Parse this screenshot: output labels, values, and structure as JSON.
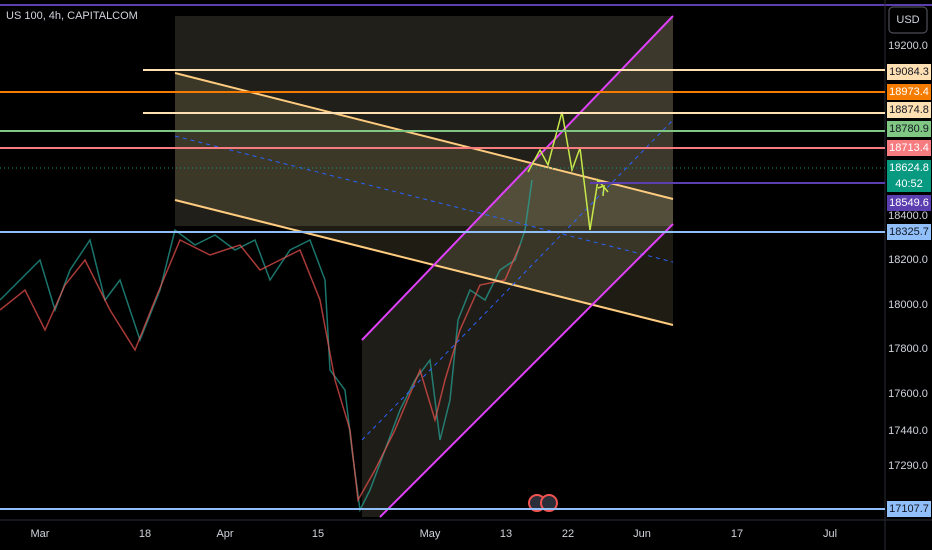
{
  "header": {
    "symbol": "US 100, 4h, CAPITALCOM"
  },
  "currency": "USD",
  "price_axis": [
    "19200.0",
    "18400.0",
    "18200.0",
    "18000.0",
    "17800.0",
    "17600.0",
    "17440.0",
    "17290.0"
  ],
  "price_tags": [
    {
      "label": "19084.3",
      "color": "#ffe0b2"
    },
    {
      "label": "18973.4",
      "color": "#f57c00"
    },
    {
      "label": "18874.8",
      "color": "#ffe0b2"
    },
    {
      "label": "18780.9",
      "color": "#81c784"
    },
    {
      "label": "18713.4",
      "color": "#f77c80"
    },
    {
      "label": "18624.8",
      "color": "#089981"
    },
    {
      "label": "18549.6",
      "color": "#5b3fb0"
    },
    {
      "label": "18325.7",
      "color": "#90bff9"
    },
    {
      "label": "17107.7",
      "color": "#90bff9"
    }
  ],
  "countdown": "40:52",
  "time_axis": [
    "Mar",
    "18",
    "Apr",
    "15",
    "May",
    "13",
    "22",
    "Jun",
    "17",
    "Jul"
  ]
}
